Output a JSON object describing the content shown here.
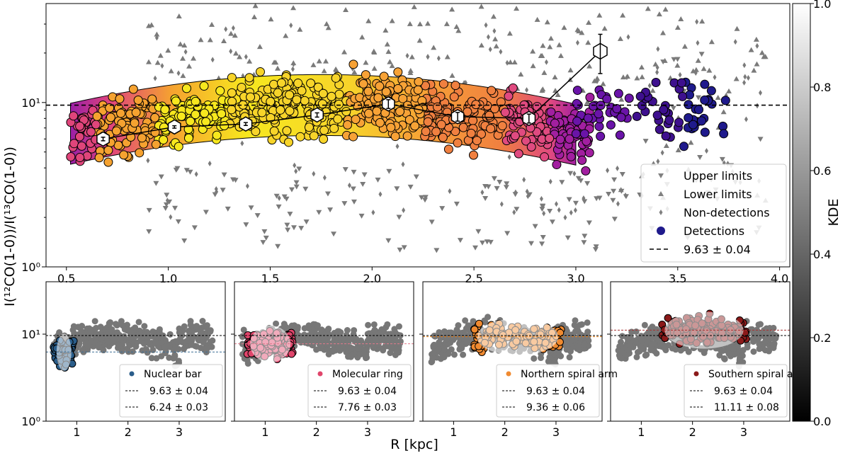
{
  "chart_data": {
    "type": "scatter",
    "ylabel": "I(¹²CO(1-0))/I(¹³CO(1-0))",
    "xlabel": "R [kpc]",
    "colorbar": {
      "label": "KDE",
      "range": [
        0.0,
        1.0
      ],
      "ticks": [
        "0.0",
        "0.2",
        "0.4",
        "0.6",
        "0.8",
        "1.0"
      ],
      "colors": [
        "#000000",
        "#ffffff"
      ]
    },
    "main": {
      "x_range": [
        0.4,
        4.05
      ],
      "y_range": [
        1,
        40
      ],
      "yscale": "log",
      "x_ticks": [
        "0.5",
        "1.0",
        "1.5",
        "2.0",
        "2.5",
        "3.0",
        "3.5",
        "4.0"
      ],
      "y_ticks": [
        {
          "value": 1,
          "label": "10⁰"
        },
        {
          "value": 10,
          "label": "10¹"
        }
      ],
      "reference_line": {
        "y": 9.63,
        "label": "9.63 ± 0.04"
      },
      "binned_medians": [
        {
          "x": 0.68,
          "y": 6.0,
          "err": 0.15
        },
        {
          "x": 1.03,
          "y": 7.1,
          "err": 0.12
        },
        {
          "x": 1.38,
          "y": 7.4,
          "err": 0.15
        },
        {
          "x": 1.73,
          "y": 8.4,
          "err": 0.25
        },
        {
          "x": 2.08,
          "y": 9.8,
          "err": 0.6
        },
        {
          "x": 2.42,
          "y": 8.2,
          "err": 0.5
        },
        {
          "x": 2.77,
          "y": 8.0,
          "err": 0.5
        },
        {
          "x": 3.12,
          "y": 20.5,
          "err": 5.5
        }
      ],
      "legend": {
        "placement": "lower-right",
        "entries": [
          {
            "marker": "triangle-down",
            "color": "#808080",
            "label": "Upper limits"
          },
          {
            "marker": "triangle-up",
            "color": "#808080",
            "label": "Lower limits"
          },
          {
            "marker": "diamond",
            "color": "#808080",
            "label": "Non-detections"
          },
          {
            "marker": "circle",
            "color": "#1f1a8c",
            "label": "Detections"
          },
          {
            "marker": "dashed-line",
            "color": "#000000",
            "label": "9.63 ± 0.04"
          }
        ]
      }
    },
    "panels": [
      {
        "name": "Nuclear bar",
        "color": "#2a5d8a",
        "global": "9.63 ± 0.04",
        "region": "6.24 ± 0.03",
        "region_value": 6.24,
        "line_color": "#3c6e96",
        "x_range": [
          0.4,
          3.9
        ]
      },
      {
        "name": "Molecular ring",
        "color": "#e0456b",
        "global": "9.63 ± 0.04",
        "region": "7.76 ± 0.03",
        "region_value": 7.76,
        "line_color": "#e07a8a",
        "x_range": [
          0.4,
          3.9
        ]
      },
      {
        "name": "Northern spiral arm",
        "color": "#f08a30",
        "global": "9.63 ± 0.04",
        "region": "9.36 ± 0.06",
        "region_value": 9.36,
        "line_color": "#e8821e",
        "x_range": [
          0.4,
          3.9
        ]
      },
      {
        "name": "Southern spiral arm",
        "color": "#8b1a1a",
        "global": "9.63 ± 0.04",
        "region": "11.11 ± 0.08",
        "region_value": 11.11,
        "line_color": "#a83232",
        "x_range": [
          0.4,
          3.9
        ]
      }
    ],
    "panel_x_ticks": [
      "1",
      "2",
      "3"
    ],
    "panel_y_ticks": [
      {
        "value": 1,
        "label": "10⁰"
      },
      {
        "value": 10,
        "label": "10¹"
      }
    ]
  }
}
